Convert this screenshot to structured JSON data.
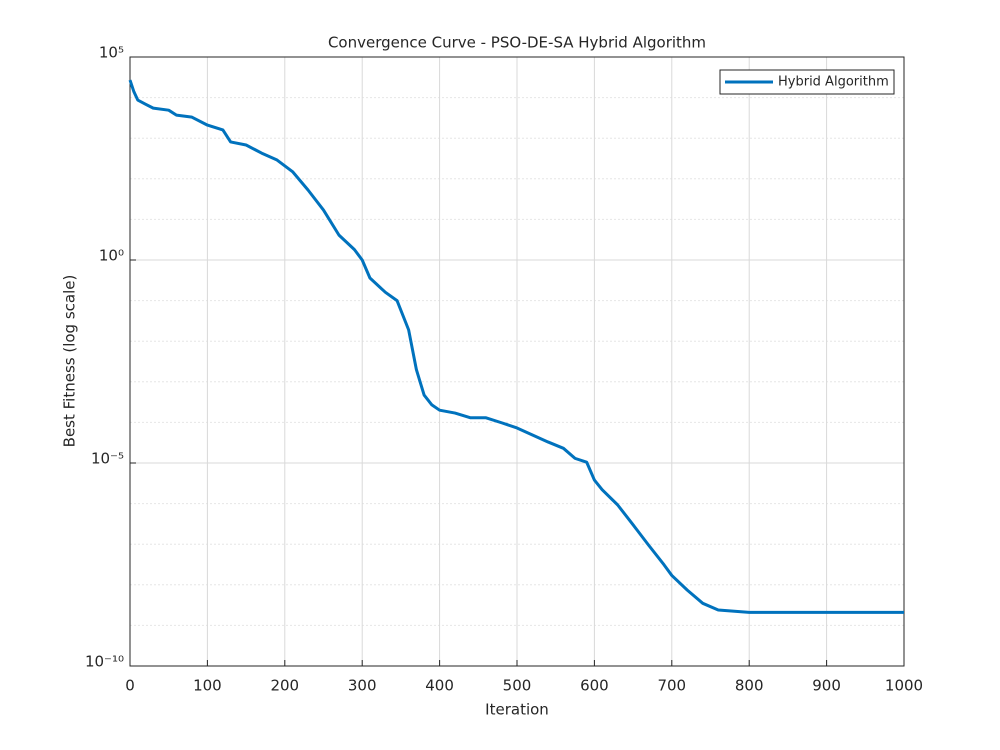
{
  "chart_data": {
    "type": "line",
    "title": "Convergence Curve - PSO-DE-SA Hybrid Algorithm",
    "xlabel": "Iteration",
    "ylabel": "Best Fitness (log scale)",
    "xlim": [
      0,
      1000
    ],
    "xticks": [
      0,
      100,
      200,
      300,
      400,
      500,
      600,
      700,
      800,
      900,
      1000
    ],
    "ylim": [
      1e-10,
      100000
    ],
    "yscale": "log",
    "yticks": [
      {
        "value": 1e-10,
        "label": "10⁻¹⁰"
      },
      {
        "value": 1e-05,
        "label": "10⁻⁵"
      },
      {
        "value": 1,
        "label": "10⁰"
      },
      {
        "value": 100000,
        "label": "10⁵"
      }
    ],
    "grid": true,
    "minor_grid": true,
    "legend": "northeast",
    "series": [
      {
        "name": "Hybrid Algorithm",
        "color": "#0072BD",
        "x": [
          0,
          5,
          10,
          20,
          30,
          50,
          60,
          80,
          100,
          120,
          130,
          150,
          170,
          190,
          210,
          230,
          250,
          270,
          290,
          300,
          310,
          330,
          345,
          360,
          370,
          380,
          390,
          400,
          420,
          440,
          460,
          480,
          500,
          520,
          540,
          560,
          575,
          590,
          600,
          610,
          630,
          650,
          670,
          690,
          700,
          720,
          740,
          760,
          800,
          1000
        ],
        "values": [
          27000,
          14000,
          8700,
          6900,
          5500,
          4900,
          3700,
          3300,
          2100,
          1600,
          810,
          680,
          430,
          290,
          150,
          53,
          17,
          4.1,
          1.8,
          1,
          0.36,
          0.16,
          0.1,
          0.019,
          0.002,
          0.00047,
          0.00027,
          0.0002,
          0.00017,
          0.00013,
          0.00013,
          9.8e-05,
          7.3e-05,
          4.9e-05,
          3.3e-05,
          2.3e-05,
          1.3e-05,
          1.05e-05,
          3.8e-06,
          2.2e-06,
          9.3e-07,
          3e-07,
          9.5e-08,
          3.1e-08,
          1.7e-08,
          7.4e-09,
          3.5e-09,
          2.4e-09,
          2.1e-09,
          2.1e-09
        ]
      }
    ]
  }
}
